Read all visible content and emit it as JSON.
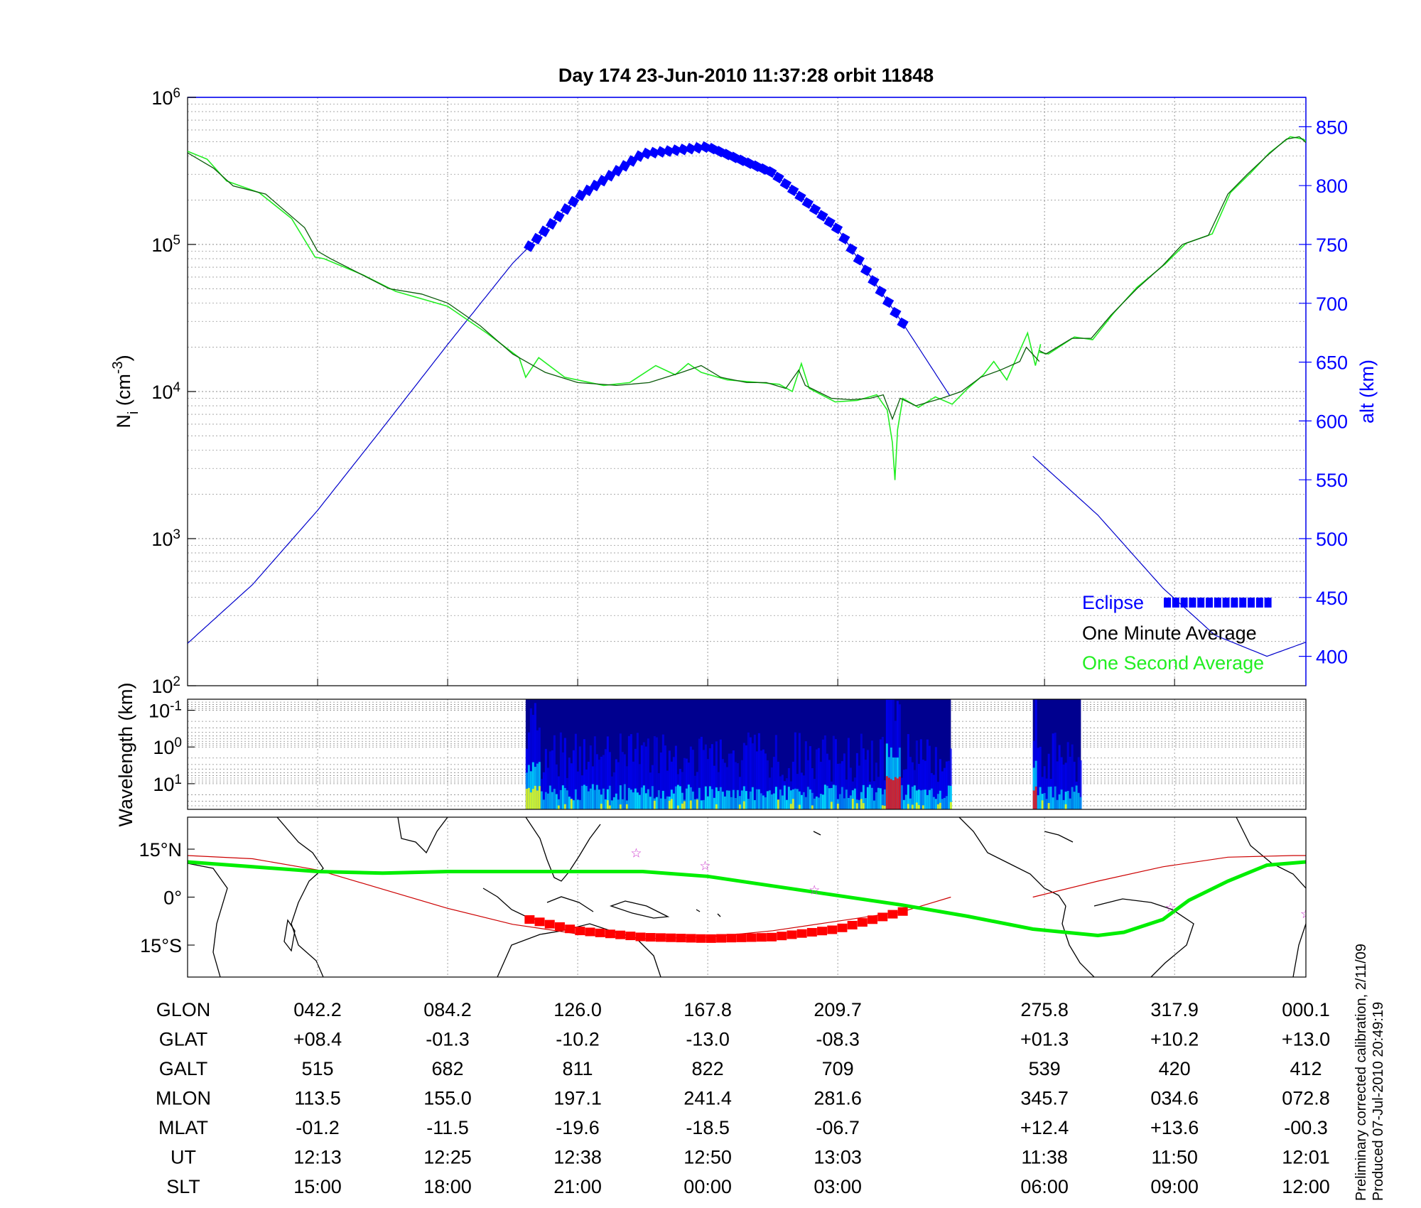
{
  "figure": {
    "title": "Day 174  23-Jun-2010 11:37:28   orbit 11848",
    "note_line1": "Preliminary corrected calibration, 2/11/09",
    "note_line2": "Produced 07-Jul-2010 20:49:19"
  },
  "chart_data": [
    {
      "type": "line",
      "panel": "ion density and altitude",
      "ylabel": "N_i (cm^-3)",
      "yscale": "log",
      "ylim": [
        100,
        1000000
      ],
      "y_ticks": [
        "10^2",
        "10^3",
        "10^4",
        "10^5",
        "10^6"
      ],
      "y2label": "alt (km)",
      "y2lim": [
        375,
        875
      ],
      "y2_ticks": [
        "400",
        "450",
        "500",
        "550",
        "600",
        "650",
        "700",
        "750",
        "800",
        "850"
      ],
      "xlim": [
        0,
        8.6
      ],
      "legend": [
        "Eclipse",
        "One Minute Average",
        "One Second Average"
      ],
      "legend_position": "bottom-right",
      "colors": {
        "altitude": "#0000cc",
        "minute": "#0a5a0a",
        "second": "#22ee22",
        "eclipse": "#0000ff"
      },
      "series": [
        {
          "name": "One Minute Average",
          "segments": [
            [
              [
                0,
                420000
              ],
              [
                0.2,
                330000
              ],
              [
                0.35,
                250000
              ],
              [
                0.6,
                220000
              ],
              [
                0.9,
                130000
              ],
              [
                1.0,
                90000
              ],
              [
                1.1,
                80000
              ],
              [
                1.3,
                65000
              ],
              [
                1.55,
                50000
              ],
              [
                1.8,
                46000
              ],
              [
                2.0,
                40000
              ],
              [
                2.25,
                28000
              ],
              [
                2.5,
                18000
              ],
              [
                2.75,
                13500
              ],
              [
                3.0,
                11500
              ],
              [
                3.3,
                11000
              ],
              [
                3.55,
                11500
              ],
              [
                3.8,
                13500
              ],
              [
                3.95,
                15000
              ],
              [
                4.1,
                12500
              ],
              [
                4.3,
                11500
              ],
              [
                4.45,
                11500
              ],
              [
                4.6,
                10500
              ],
              [
                4.7,
                14000
              ],
              [
                4.75,
                11000
              ],
              [
                4.95,
                9000
              ],
              [
                5.1,
                8800
              ],
              [
                5.25,
                9000
              ],
              [
                5.35,
                9500
              ],
              [
                5.42,
                6500
              ],
              [
                5.48,
                9000
              ],
              [
                5.6,
                8000
              ],
              [
                5.8,
                9000
              ],
              [
                5.95,
                10000
              ],
              [
                6.1,
                12500
              ],
              [
                6.25,
                14000
              ],
              [
                6.4,
                16000
              ],
              [
                6.45,
                20000
              ],
              [
                6.55,
                16000
              ]
            ],
            [
              [
                6.55,
                19000
              ],
              [
                6.6,
                18000
              ],
              [
                6.8,
                23000
              ],
              [
                6.95,
                23000
              ],
              [
                7.1,
                33000
              ],
              [
                7.3,
                50000
              ],
              [
                7.5,
                72000
              ],
              [
                7.65,
                100000
              ],
              [
                7.85,
                115000
              ],
              [
                8.0,
                220000
              ],
              [
                8.15,
                300000
              ],
              [
                8.3,
                400000
              ],
              [
                8.45,
                520000
              ],
              [
                8.55,
                540000
              ],
              [
                8.65,
                450000
              ],
              [
                8.8,
                450000
              ],
              [
                8.98,
                470000
              ]
            ]
          ]
        },
        {
          "name": "One Second Average",
          "segments": [
            [
              [
                0,
                430000
              ],
              [
                0.15,
                380000
              ],
              [
                0.3,
                270000
              ],
              [
                0.55,
                225000
              ],
              [
                0.8,
                150000
              ],
              [
                0.98,
                82000
              ],
              [
                1.05,
                80000
              ],
              [
                1.35,
                62000
              ],
              [
                1.6,
                48000
              ],
              [
                2.0,
                38000
              ],
              [
                2.3,
                25000
              ],
              [
                2.55,
                17000
              ],
              [
                2.6,
                12500
              ],
              [
                2.7,
                17000
              ],
              [
                2.9,
                12500
              ],
              [
                3.2,
                11000
              ],
              [
                3.4,
                11500
              ],
              [
                3.6,
                15000
              ],
              [
                3.75,
                13000
              ],
              [
                3.85,
                15500
              ],
              [
                3.95,
                13500
              ],
              [
                4.15,
                12000
              ],
              [
                4.4,
                11500
              ],
              [
                4.55,
                11200
              ],
              [
                4.65,
                10000
              ],
              [
                4.72,
                15500
              ],
              [
                4.78,
                10500
              ],
              [
                4.98,
                8500
              ],
              [
                5.15,
                8700
              ],
              [
                5.3,
                9500
              ],
              [
                5.38,
                7500
              ],
              [
                5.42,
                4500
              ],
              [
                5.44,
                2500
              ],
              [
                5.46,
                5500
              ],
              [
                5.5,
                9000
              ],
              [
                5.62,
                7800
              ],
              [
                5.75,
                9200
              ],
              [
                5.88,
                8200
              ],
              [
                6.0,
                10500
              ],
              [
                6.12,
                13000
              ],
              [
                6.2,
                16000
              ],
              [
                6.3,
                12000
              ],
              [
                6.4,
                19000
              ],
              [
                6.46,
                25000
              ],
              [
                6.52,
                15000
              ],
              [
                6.56,
                21000
              ]
            ],
            [
              [
                6.55,
                18500
              ],
              [
                6.62,
                18000
              ],
              [
                6.82,
                23500
              ],
              [
                6.96,
                22500
              ],
              [
                7.12,
                34000
              ],
              [
                7.3,
                51000
              ],
              [
                7.52,
                74000
              ],
              [
                7.68,
                102000
              ],
              [
                7.88,
                118000
              ],
              [
                8.02,
                225000
              ],
              [
                8.18,
                310000
              ],
              [
                8.32,
                420000
              ],
              [
                8.48,
                540000
              ],
              [
                8.58,
                520000
              ],
              [
                8.7,
                440000
              ],
              [
                8.85,
                455000
              ],
              [
                8.98,
                465000
              ]
            ]
          ]
        },
        {
          "name": "alt (km)",
          "axis": "right",
          "x": [
            0,
            0.5,
            1.0,
            1.5,
            2.0,
            2.5,
            3.0,
            3.5,
            4.0,
            4.5,
            5.0,
            5.5,
            5.87,
            6.29,
            6.5,
            7.0,
            7.5,
            7.9,
            8.3,
            8.6
          ],
          "values": [
            411,
            461,
            524,
            594,
            665,
            734,
            790,
            827,
            833,
            811,
            763,
            683,
            620,
            578,
            570,
            520,
            458,
            418,
            400,
            412
          ]
        },
        {
          "name": "Eclipse",
          "axis": "right",
          "x_start": 2.63,
          "x_end": 5.5,
          "values": [
            780,
            812,
            829,
            833,
            828,
            811,
            782,
            740,
            690,
            640
          ]
        }
      ]
    },
    {
      "type": "heatmap",
      "panel": "spectrogram",
      "ylabel": "Wavelength (km)",
      "yscale": "log",
      "ylim": [
        0.05,
        50
      ],
      "y_ticks": [
        "10^-1",
        "10^0",
        "10^1"
      ],
      "data_ranges_x": [
        [
          2.6,
          5.87
        ],
        [
          6.5,
          6.87
        ]
      ],
      "colormap": [
        "#00008f",
        "#0000ff",
        "#00ffff",
        "#ffff00",
        "#ff0000"
      ]
    },
    {
      "type": "line",
      "panel": "ground track map",
      "ylim": [
        -25,
        25
      ],
      "y_ticks": [
        "15°N",
        "0°",
        "15°S"
      ],
      "series": [
        {
          "name": "satellite ground track",
          "color": "#cc0000",
          "x": [
            0,
            0.5,
            1.0,
            1.5,
            2.0,
            2.5,
            3.0,
            3.5,
            4.0,
            4.5,
            5.0,
            5.5,
            5.87
          ],
          "values": [
            13,
            12,
            8.5,
            2.5,
            -3.5,
            -8.5,
            -11.5,
            -13,
            -12.5,
            -10.5,
            -7.5,
            -4.5,
            0
          ],
          "x2": [
            6.5,
            7.0,
            7.5,
            8.0,
            8.5,
            8.6
          ],
          "values2": [
            0,
            5,
            9.5,
            12.5,
            13,
            13
          ]
        },
        {
          "name": "magnetic equator",
          "color": "#00ee00",
          "x": [
            0,
            0.5,
            1.0,
            1.5,
            2.0,
            2.5,
            3.0,
            3.5,
            4.0,
            4.5,
            5.0,
            5.5,
            6.0,
            6.5,
            7.0,
            7.2,
            7.5,
            7.7,
            8.0,
            8.3,
            8.6
          ],
          "values": [
            11,
            9.5,
            8,
            7.5,
            8,
            8,
            8,
            8,
            6.5,
            3.5,
            0.5,
            -2.5,
            -6,
            -10,
            -12,
            -11,
            -7,
            -1,
            5,
            10,
            11
          ]
        },
        {
          "name": "eclipse",
          "color": "#ff0000",
          "x": [
            2.63,
            3.0,
            3.5,
            4.0,
            4.5,
            5.0,
            5.5
          ],
          "values": [
            -7,
            -10.5,
            -12.5,
            -13,
            -12.5,
            -10,
            -4.5
          ]
        }
      ],
      "stations_x": [
        3.45,
        3.98,
        4.82,
        7.56,
        8.6
      ],
      "stations_lat": [
        14,
        10,
        2.5,
        -3,
        -5
      ]
    }
  ],
  "table": {
    "row_labels": [
      "GLON",
      "GLAT",
      "GALT",
      "MLON",
      "MLAT",
      "UT",
      "SLT"
    ],
    "columns": [
      [
        "042.2",
        "+08.4",
        "515",
        "113.5",
        "-01.2",
        "12:13",
        "15:00"
      ],
      [
        "084.2",
        "-01.3",
        "682",
        "155.0",
        "-11.5",
        "12:25",
        "18:00"
      ],
      [
        "126.0",
        "-10.2",
        "811",
        "197.1",
        "-19.6",
        "12:38",
        "21:00"
      ],
      [
        "167.8",
        "-13.0",
        "822",
        "241.4",
        "-18.5",
        "12:50",
        "00:00"
      ],
      [
        "209.7",
        "-08.3",
        "709",
        "281.6",
        "-06.7",
        "13:03",
        "03:00"
      ],
      [
        "275.8",
        "+01.3",
        "539",
        "345.7",
        "+12.4",
        "11:38",
        "06:00"
      ],
      [
        "317.9",
        "+10.2",
        "420",
        "034.6",
        "+13.6",
        "11:50",
        "09:00"
      ],
      [
        "000.1",
        "+13.0",
        "412",
        "072.8",
        "-00.3",
        "12:01",
        "12:00"
      ]
    ]
  }
}
